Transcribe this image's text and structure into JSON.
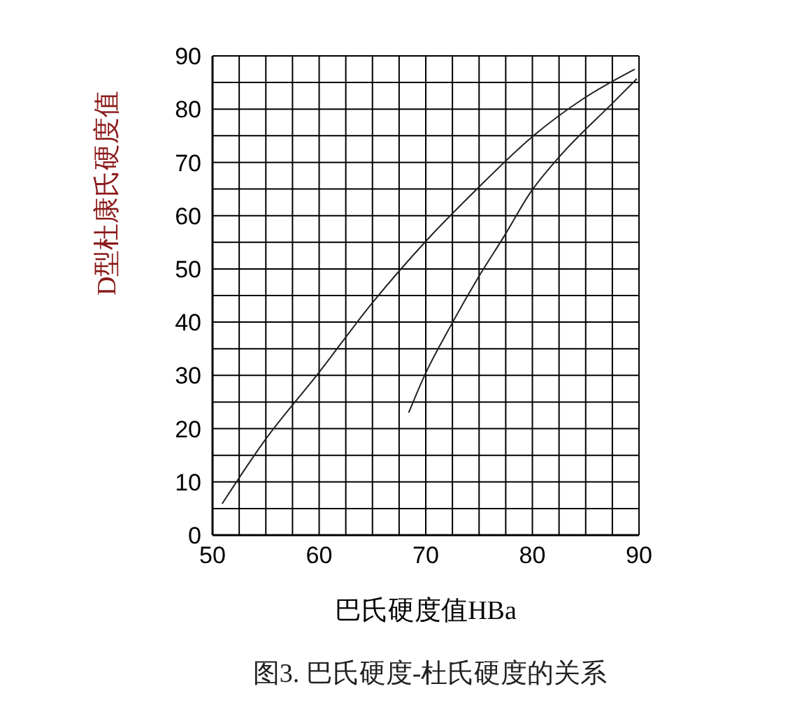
{
  "chart_data": {
    "type": "line",
    "title": "图3. 巴氏硬度-杜氏硬度的关系",
    "xlabel": "巴氏硬度值HBa",
    "ylabel": "D型杜康氏硬度值",
    "xlim": [
      50,
      90
    ],
    "ylim": [
      0,
      90
    ],
    "xticks": [
      50,
      {
        "value": 52.5,
        "label": null
      },
      {
        "value": 55,
        "label": null
      },
      {
        "value": 57.5,
        "label": null
      },
      60,
      {
        "value": 62.5,
        "label": null
      },
      {
        "value": 65,
        "label": null
      },
      {
        "value": 67.5,
        "label": null
      },
      70,
      {
        "value": 72.5,
        "label": null
      },
      {
        "value": 75,
        "label": null
      },
      {
        "value": 77.5,
        "label": null
      },
      80,
      {
        "value": 82.5,
        "label": null
      },
      {
        "value": 85,
        "label": null
      },
      {
        "value": 87.5,
        "label": null
      },
      90
    ],
    "yticks": [
      0,
      {
        "value": 5,
        "label": null
      },
      10,
      {
        "value": 15,
        "label": null
      },
      20,
      {
        "value": 25,
        "label": null
      },
      30,
      {
        "value": 35,
        "label": null
      },
      40,
      {
        "value": 45,
        "label": null
      },
      50,
      {
        "value": 55,
        "label": null
      },
      60,
      {
        "value": 65,
        "label": null
      },
      70,
      {
        "value": 75,
        "label": null
      },
      80,
      {
        "value": 85,
        "label": null
      },
      90
    ],
    "grid": true,
    "marker": "none",
    "line_style": "solid",
    "series": [
      {
        "color": "#222222",
        "x": [
          50.9,
          54.9,
          60.0,
          64.9,
          70.1,
          74.9,
          79.8,
          84.8,
          89.6
        ],
        "values": [
          5.9,
          17.8,
          30.6,
          43.4,
          55.4,
          65.2,
          74.5,
          82.0,
          87.5
        ]
      },
      {
        "color": "#222222",
        "x": [
          68.4,
          69.8,
          72.5,
          74.9,
          77.4,
          79.8,
          82.5,
          87.5,
          89.8
        ],
        "values": [
          23.0,
          29.6,
          39.9,
          48.3,
          56.3,
          64.3,
          71.0,
          81.1,
          85.7
        ]
      }
    ]
  }
}
